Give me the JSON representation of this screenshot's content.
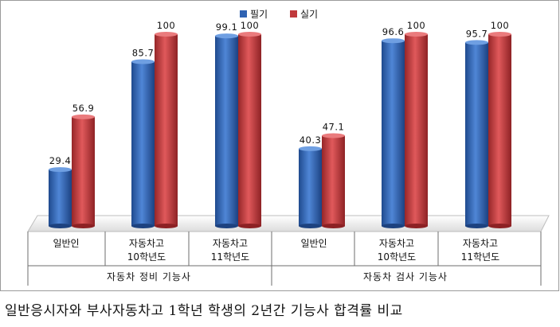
{
  "chart_data": {
    "type": "bar",
    "title": "",
    "xlabel": "",
    "ylabel": "",
    "ylim": [
      0,
      100
    ],
    "grid": false,
    "legend": "top-center",
    "series": [
      {
        "name": "필기",
        "color": "#2f63b3",
        "values": [
          29.4,
          85.7,
          99.1,
          40.3,
          96.6,
          95.7
        ],
        "labels": [
          "29.4",
          "85.7",
          "99.1",
          "40.3",
          "96.6",
          "95.7"
        ]
      },
      {
        "name": "실기",
        "color": "#c0393c",
        "values": [
          56.9,
          100,
          100,
          47.1,
          100,
          100
        ],
        "labels": [
          "56.9",
          "100",
          "100",
          "47.1",
          "100",
          "100"
        ]
      }
    ],
    "categories": [
      {
        "lines": [
          "일반인"
        ]
      },
      {
        "lines": [
          "자동차고",
          "10학년도"
        ]
      },
      {
        "lines": [
          "자동차고",
          "11학년도"
        ]
      },
      {
        "lines": [
          "일반인"
        ]
      },
      {
        "lines": [
          "자동차고",
          "10학년도"
        ]
      },
      {
        "lines": [
          "자동차고",
          "11학년도"
        ]
      }
    ],
    "groups": [
      {
        "label": "자동차 정비 기능사",
        "span": [
          0,
          2
        ]
      },
      {
        "label": "자동차 검사 기능사",
        "span": [
          3,
          5
        ]
      }
    ]
  },
  "caption": "일반응시자와 부사자동차고 1학년 학생의 2년간 기능사 합격률 비교"
}
